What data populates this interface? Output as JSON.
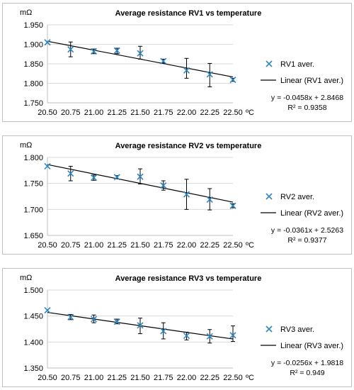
{
  "chart_data": [
    {
      "type": "scatter",
      "title": "Average resistance RV1 vs temperature",
      "ylabel": "mΩ",
      "xlabel": "ºC",
      "x": [
        20.5,
        20.75,
        21.0,
        21.25,
        21.5,
        21.75,
        22.0,
        22.25,
        22.5
      ],
      "xticks": [
        "20.50",
        "20.75",
        "21.00",
        "21.25",
        "21.50",
        "21.75",
        "22.00",
        "22.25",
        "22.50"
      ],
      "ylim": [
        1.75,
        1.95
      ],
      "yticks": [
        "1.750",
        "1.800",
        "1.850",
        "1.900",
        "1.950"
      ],
      "grid": true,
      "legend_position": "right",
      "series": [
        {
          "name": "RV1 aver.",
          "marker": "x",
          "color": "#2e86c1",
          "values": [
            1.905,
            1.887,
            1.882,
            1.884,
            1.877,
            1.857,
            1.833,
            1.823,
            1.809
          ],
          "error_low": [
            1.905,
            1.868,
            1.876,
            1.876,
            1.862,
            1.852,
            1.813,
            1.791,
            1.805
          ],
          "error_high": [
            1.905,
            1.906,
            1.888,
            1.89,
            1.895,
            1.862,
            1.864,
            1.851,
            1.813
          ]
        }
      ],
      "trendline": {
        "name": "Linear (RV1 aver.)",
        "slope": -0.0458,
        "intercept": 2.8468,
        "r2": 0.9358
      },
      "equation": "y = -0.0458x + 2.8468",
      "r2_label": "R² = 0.9358"
    },
    {
      "type": "scatter",
      "title": "Average resistance RV2 vs temperature",
      "ylabel": "mΩ",
      "xlabel": "ºC",
      "x": [
        20.5,
        20.75,
        21.0,
        21.25,
        21.5,
        21.75,
        22.0,
        22.25,
        22.5
      ],
      "xticks": [
        "20.50",
        "20.75",
        "21.00",
        "21.25",
        "21.50",
        "21.75",
        "22.00",
        "22.25",
        "22.50"
      ],
      "ylim": [
        1.65,
        1.8
      ],
      "yticks": [
        "1.650",
        "1.700",
        "1.750",
        "1.800"
      ],
      "grid": true,
      "legend_position": "right",
      "series": [
        {
          "name": "RV2 aver.",
          "marker": "x",
          "color": "#2e86c1",
          "values": [
            1.783,
            1.769,
            1.761,
            1.762,
            1.763,
            1.746,
            1.729,
            1.719,
            1.707
          ],
          "error_low": [
            1.783,
            1.755,
            1.756,
            1.759,
            1.749,
            1.737,
            1.7,
            1.699,
            1.703
          ],
          "error_high": [
            1.783,
            1.783,
            1.766,
            1.765,
            1.778,
            1.755,
            1.758,
            1.74,
            1.711
          ]
        }
      ],
      "trendline": {
        "name": "Linear (RV2 aver.)",
        "slope": -0.0361,
        "intercept": 2.5263,
        "r2": 0.9377
      },
      "equation": "y = -0.0361x + 2.5263",
      "r2_label": "R² = 0.9377"
    },
    {
      "type": "scatter",
      "title": "Average resistance RV3 vs temperature",
      "ylabel": "mΩ",
      "xlabel": "ºC",
      "x": [
        20.5,
        20.75,
        21.0,
        21.25,
        21.5,
        21.75,
        22.0,
        22.25,
        22.5
      ],
      "xticks": [
        "20.50",
        "20.75",
        "21.00",
        "21.25",
        "21.50",
        "21.75",
        "22.00",
        "22.25",
        "22.50"
      ],
      "ylim": [
        1.35,
        1.5
      ],
      "yticks": [
        "1.350",
        "1.400",
        "1.450",
        "1.500"
      ],
      "grid": true,
      "legend_position": "right",
      "series": [
        {
          "name": "RV3 aver.",
          "marker": "x",
          "color": "#2e86c1",
          "values": [
            1.461,
            1.448,
            1.444,
            1.439,
            1.432,
            1.421,
            1.412,
            1.411,
            1.413
          ],
          "error_low": [
            1.461,
            1.443,
            1.437,
            1.435,
            1.416,
            1.406,
            1.404,
            1.398,
            1.401
          ],
          "error_high": [
            1.461,
            1.453,
            1.452,
            1.444,
            1.446,
            1.437,
            1.419,
            1.424,
            1.431
          ]
        }
      ],
      "trendline": {
        "name": "Linear (RV3 aver.)",
        "slope": -0.0256,
        "intercept": 1.9818,
        "r2": 0.949
      },
      "equation": "y = -0.0256x + 1.9818",
      "r2_label": "R² = 0.949"
    }
  ]
}
